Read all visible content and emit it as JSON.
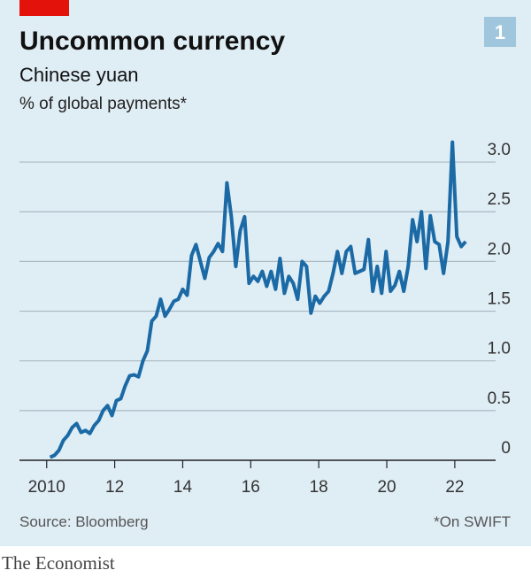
{
  "chart_data": {
    "type": "line",
    "title": "Uncommon currency",
    "subtitle": "Chinese yuan",
    "y_label": "% of global payments*",
    "source": "Source: Bloomberg",
    "note": "*On SWIFT",
    "chart_number": "1",
    "publisher": "The Economist",
    "xlim": [
      2009.2,
      2023.2
    ],
    "xticks": [
      2010,
      {
        "value": 2012,
        "label": "12"
      },
      {
        "value": 2014,
        "label": "14"
      },
      {
        "value": 2016,
        "label": "16"
      },
      {
        "value": 2018,
        "label": "18"
      },
      {
        "value": 2020,
        "label": "20"
      },
      {
        "value": 2022,
        "label": "22"
      }
    ],
    "ylim": [
      0,
      3.25
    ],
    "yticks": [
      0,
      0.5,
      {
        "value": 1,
        "label": "1.0"
      },
      1.5,
      {
        "value": 2,
        "label": "2.0"
      },
      2.5,
      {
        "value": 3,
        "label": "3.0"
      }
    ],
    "grid": true,
    "x": [
      2010.1,
      2010.23,
      2010.36,
      2010.49,
      2010.62,
      2010.75,
      2010.88,
      2011.01,
      2011.14,
      2011.27,
      2011.4,
      2011.53,
      2011.66,
      2011.79,
      2011.92,
      2012.05,
      2012.18,
      2012.31,
      2012.44,
      2012.57,
      2012.7,
      2012.83,
      2012.96,
      2013.09,
      2013.22,
      2013.35,
      2013.48,
      2013.61,
      2013.74,
      2013.87,
      2014.0,
      2014.13,
      2014.26,
      2014.39,
      2014.52,
      2014.65,
      2014.78,
      2014.91,
      2015.04,
      2015.17,
      2015.3,
      2015.43,
      2015.56,
      2015.69,
      2015.82,
      2015.95,
      2016.08,
      2016.21,
      2016.34,
      2016.47,
      2016.6,
      2016.73,
      2016.86,
      2016.99,
      2017.12,
      2017.25,
      2017.38,
      2017.51,
      2017.64,
      2017.77,
      2017.9,
      2018.03,
      2018.16,
      2018.29,
      2018.42,
      2018.55,
      2018.68,
      2018.81,
      2018.94,
      2019.07,
      2019.2,
      2019.33,
      2019.46,
      2019.59,
      2019.72,
      2019.85,
      2019.98,
      2020.11,
      2020.24,
      2020.37,
      2020.5,
      2020.63,
      2020.76,
      2020.89,
      2021.02,
      2021.15,
      2021.28,
      2021.41,
      2021.54,
      2021.67,
      2021.8,
      2021.93,
      2022.06,
      2022.19,
      2022.32
    ],
    "series": [
      {
        "name": "Chinese yuan",
        "color": "#1b6aa5",
        "values": [
          0.03,
          0.05,
          0.1,
          0.2,
          0.25,
          0.33,
          0.37,
          0.28,
          0.3,
          0.27,
          0.35,
          0.4,
          0.5,
          0.55,
          0.45,
          0.6,
          0.62,
          0.75,
          0.85,
          0.86,
          0.84,
          1.0,
          1.1,
          1.4,
          1.45,
          1.62,
          1.45,
          1.52,
          1.6,
          1.62,
          1.72,
          1.66,
          2.06,
          2.17,
          2.0,
          1.83,
          2.04,
          2.1,
          2.18,
          2.1,
          2.79,
          2.45,
          1.95,
          2.31,
          2.45,
          1.78,
          1.85,
          1.8,
          1.9,
          1.75,
          1.9,
          1.72,
          2.03,
          1.68,
          1.85,
          1.78,
          1.62,
          2.0,
          1.95,
          1.48,
          1.65,
          1.58,
          1.65,
          1.7,
          1.88,
          2.1,
          1.88,
          2.1,
          2.15,
          1.88,
          1.9,
          1.92,
          2.22,
          1.7,
          1.95,
          1.68,
          2.1,
          1.7,
          1.76,
          1.9,
          1.7,
          1.95,
          2.42,
          2.2,
          2.5,
          1.93,
          2.46,
          2.2,
          2.17,
          1.88,
          2.2,
          3.2,
          2.25,
          2.15,
          2.2
        ]
      }
    ]
  }
}
